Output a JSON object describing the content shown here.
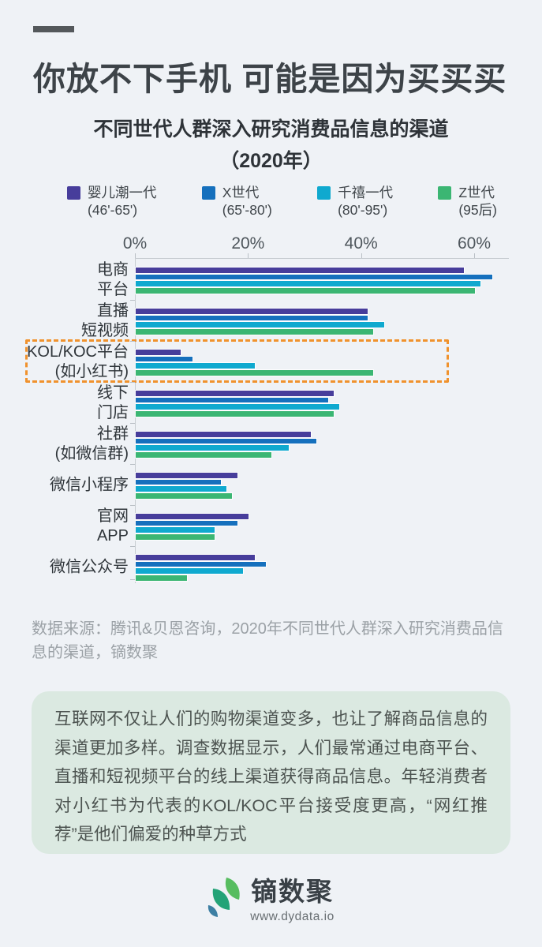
{
  "header": {
    "title": "你放不下手机 可能是因为买买买",
    "subtitle_line1": "不同世代人群深入研究消费品信息的渠道",
    "subtitle_line2": "（2020年）"
  },
  "chart_data": {
    "type": "bar",
    "orientation": "horizontal",
    "unit": "%",
    "x_ticks": [
      "0%",
      "20%",
      "40%",
      "60%"
    ],
    "x_tick_values": [
      0,
      20,
      40,
      60
    ],
    "xlim": [
      0,
      66
    ],
    "categories": [
      "电商平台",
      "直播短视频",
      "KOL/KOC平台(如小红书)",
      "线下门店",
      "社群(如微信群)",
      "微信小程序",
      "官网APP",
      "微信公众号"
    ],
    "category_label_lines": [
      [
        "电商",
        "平台"
      ],
      [
        "直播",
        "短视频"
      ],
      [
        "KOL/KOC平台",
        "(如小红书)"
      ],
      [
        "线下",
        "门店"
      ],
      [
        "社群",
        "(如微信群)"
      ],
      [
        "微信小程序"
      ],
      [
        "官网",
        "APP"
      ],
      [
        "微信公众号"
      ]
    ],
    "series": [
      {
        "name": "婴儿潮一代",
        "range": "(46'-65')",
        "color": "#473d9b",
        "values": [
          58,
          41,
          8,
          35,
          31,
          18,
          20,
          21
        ]
      },
      {
        "name": "X世代",
        "range": "(65'-80')",
        "color": "#1570bd",
        "values": [
          63,
          41,
          10,
          34,
          32,
          15,
          18,
          23
        ]
      },
      {
        "name": "千禧一代",
        "range": "(80'-95')",
        "color": "#0fa9cf",
        "values": [
          61,
          44,
          21,
          36,
          27,
          16,
          14,
          19
        ]
      },
      {
        "name": "Z世代",
        "range": "(95后)",
        "color": "#3bb673",
        "values": [
          60,
          42,
          42,
          35,
          24,
          17,
          14,
          9
        ]
      }
    ],
    "highlighted_category": "KOL/KOC平台(如小红书)",
    "highlight_color": "#f0922d",
    "legend_position": "top",
    "grid": false
  },
  "source": {
    "text": "数据来源：腾讯&贝恩咨询，2020年不同世代人群深入研究消费品信息的渠道，镝数聚"
  },
  "note": {
    "text": "互联网不仅让人们的购物渠道变多，也让了解商品信息的渠道更加多样。调查数据显示，人们最常通过电商平台、直播和短视频平台的线上渠道获得商品信息。年轻消费者对小红书为代表的KOL/KOC平台接受度更高，“网红推荐”是他们偏爱的种草方式"
  },
  "footer": {
    "brand": "镝数聚",
    "url": "www.dydata.io",
    "logo_colors": {
      "leaf_light": "#57bd60",
      "leaf_teal": "#23a377",
      "leaf_blue": "#3d7fa3"
    }
  }
}
